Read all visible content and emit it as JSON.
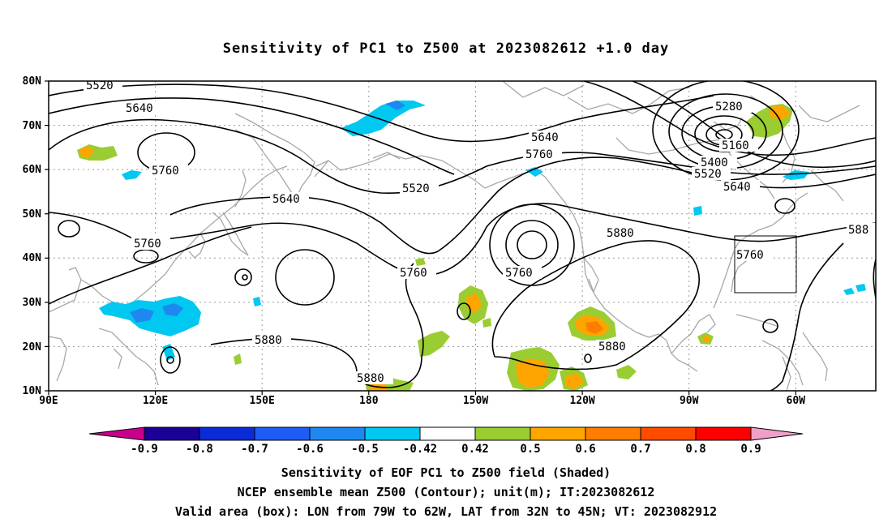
{
  "title": "Sensitivity of PC1 to Z500 at 2023082612 +1.0 day",
  "lat_ticks": [
    "80N",
    "70N",
    "60N",
    "50N",
    "40N",
    "30N",
    "20N",
    "10N"
  ],
  "lon_ticks": [
    "90E",
    "120E",
    "150E",
    "180",
    "150W",
    "120W",
    "90W",
    "60W"
  ],
  "contour_labels": {
    "c5520_top": "5520",
    "c5640_top": "5640",
    "c5760_nw": "5760",
    "c5520_mid": "5520",
    "c5640_pac": "5640",
    "c5640_gulf": "5640",
    "c5760_gulf": "5760",
    "c5760_asia": "5760",
    "c5760_pac": "5760",
    "c5760_high": "5760",
    "c5880_us": "5880",
    "c5880_e": "588",
    "c5760_box": "5760",
    "c5880_wp": "5880",
    "c5880_s": "5880",
    "c5880_mex": "5880",
    "c5280": "5280",
    "c5160": "5160",
    "c5400": "5400",
    "c5520_c": "5520",
    "c5640_c": "5640"
  },
  "colorbar": {
    "labels": [
      "-0.9",
      "-0.8",
      "-0.7",
      "-0.6",
      "-0.5",
      "-0.42",
      "0.42",
      "0.5",
      "0.6",
      "0.7",
      "0.8",
      "0.9"
    ],
    "colors": [
      "#1a0096",
      "#0a2bd6",
      "#1f5cf5",
      "#1e88f0",
      "#00c8f0",
      "#ffffff",
      "#9acd32",
      "#ffa500",
      "#ff7d00",
      "#ff4b00",
      "#ff0000"
    ],
    "low_color": "#c8008c",
    "high_color": "#f0a0c8"
  },
  "footer": {
    "line1": "Sensitivity of EOF PC1 to Z500 field (Shaded)",
    "line2": "NCEP ensemble mean Z500 (Contour); unit(m); IT:2023082612",
    "line3": "Valid area (box): LON from 79W to 62W, LAT from 32N to 45N; VT: 2023082912"
  }
}
